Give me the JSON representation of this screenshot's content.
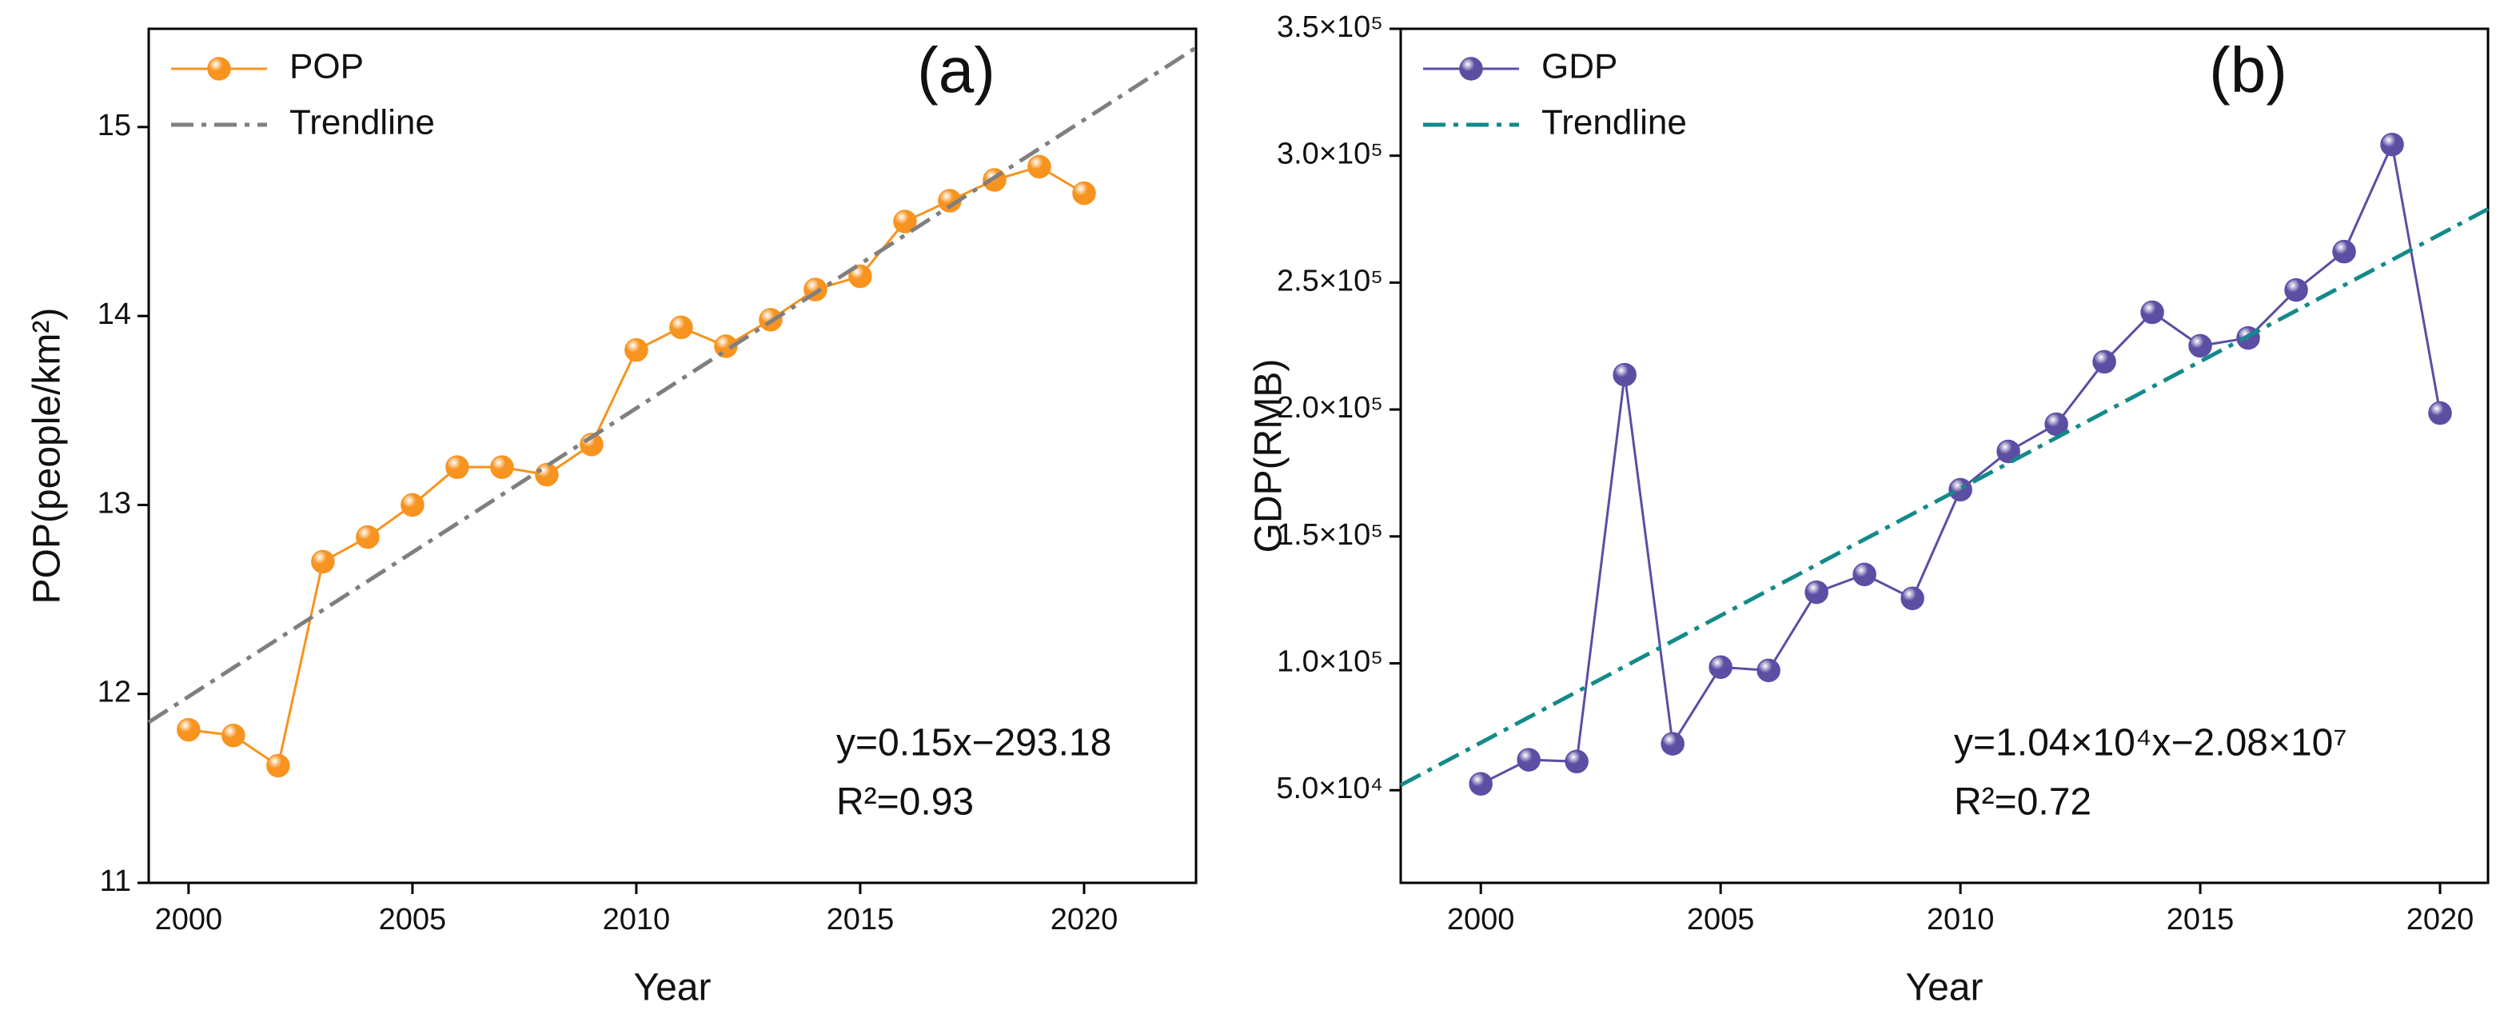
{
  "chart_data": [
    {
      "type": "line",
      "panel_label": "(a)",
      "x_label": "Year",
      "y_label": "POP(people/km²)",
      "xlim": [
        1999.11,
        2022.5
      ],
      "ylim": [
        11,
        15.52
      ],
      "xticks": [
        2000,
        2005,
        2010,
        2015,
        2020
      ],
      "yticks": [
        11,
        12,
        13,
        14,
        15
      ],
      "legend": "upper left",
      "annotations": [
        "y=0.15x−293.18",
        "R²=0.93"
      ],
      "series": [
        {
          "name": "POP",
          "color": "#f7931e",
          "style": "solid-markers",
          "x": [
            2000,
            2001,
            2002,
            2003,
            2004,
            2005,
            2006,
            2007,
            2008,
            2009,
            2010,
            2011,
            2012,
            2013,
            2014,
            2015,
            2016,
            2017,
            2018,
            2019,
            2020
          ],
          "values": [
            11.81,
            11.78,
            11.62,
            12.7,
            12.83,
            13.0,
            13.2,
            13.2,
            13.16,
            13.32,
            13.82,
            13.94,
            13.84,
            13.98,
            14.14,
            14.21,
            14.5,
            14.61,
            14.72,
            14.79,
            14.65
          ]
        },
        {
          "name": "Trendline",
          "color": "#7f7f7f",
          "style": "dashdot",
          "x": [
            1999.11,
            2022.5
          ],
          "values": [
            11.85,
            15.42
          ]
        }
      ]
    },
    {
      "type": "line",
      "panel_label": "(b)",
      "x_label": "Year",
      "y_label": "GDP(RMB)",
      "xlim": [
        1998.33,
        2021.0
      ],
      "ylim": [
        13500,
        350000
      ],
      "xticks": [
        2000,
        2005,
        2010,
        2015,
        2020
      ],
      "yticks": [
        {
          "value": 50000,
          "label": "5.0×10⁴"
        },
        {
          "value": 100000,
          "label": "1.0×10⁵"
        },
        {
          "value": 150000,
          "label": "1.5×10⁵"
        },
        {
          "value": 200000,
          "label": "2.0×10⁵"
        },
        {
          "value": 250000,
          "label": "2.5×10⁵"
        },
        {
          "value": 300000,
          "label": "3.0×10⁵"
        },
        {
          "value": 350000,
          "label": "3.5×10⁵"
        }
      ],
      "legend": "upper left",
      "annotations": [
        "y=1.04×10⁴x−2.08×10⁷",
        "R²=0.72"
      ],
      "series": [
        {
          "name": "GDP",
          "color": "#5b4ea3",
          "style": "solid-markers",
          "x": [
            2000,
            2001,
            2002,
            2003,
            2004,
            2005,
            2006,
            2007,
            2008,
            2009,
            2010,
            2011,
            2012,
            2013,
            2014,
            2015,
            2016,
            2017,
            2018,
            2019,
            2020
          ],
          "values": [
            52500,
            62000,
            61300,
            213700,
            68300,
            98500,
            97200,
            128000,
            135000,
            125600,
            168400,
            183500,
            194200,
            218800,
            238300,
            225100,
            228200,
            247100,
            262200,
            304400,
            198600
          ]
        },
        {
          "name": "Trendline",
          "color": "#138a8a",
          "style": "dashdot",
          "x": [
            1998.33,
            2021.0
          ],
          "values": [
            52000,
            279000
          ]
        }
      ]
    }
  ]
}
